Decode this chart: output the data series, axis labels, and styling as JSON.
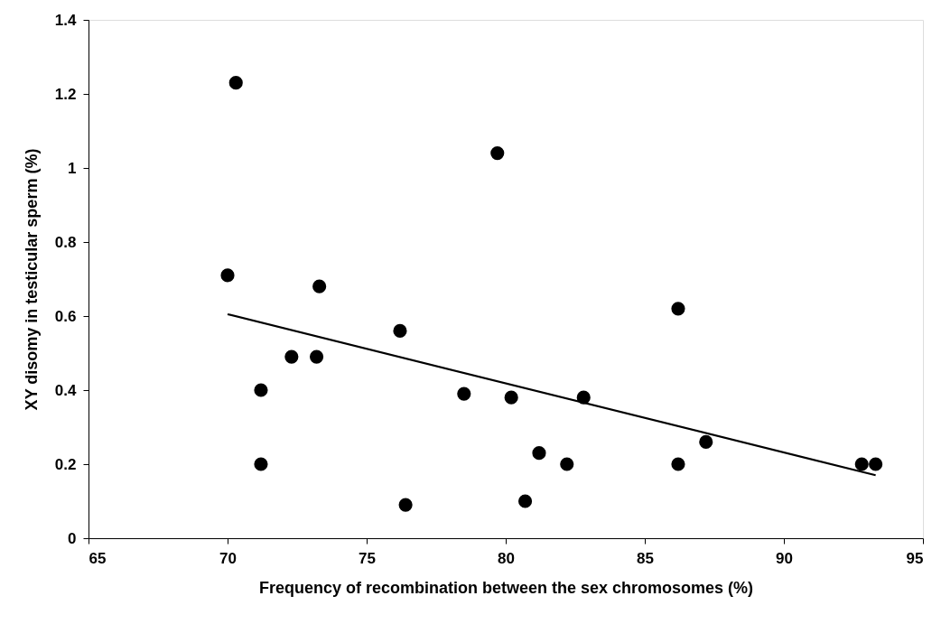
{
  "chart_data": {
    "type": "scatter",
    "xlabel": "Frequency of recombination between the sex chromosomes (%)",
    "ylabel": "XY disomy in testicular sperm (%)",
    "xlim": [
      65,
      95
    ],
    "xticks": [
      65,
      70,
      75,
      80,
      85,
      90,
      95
    ],
    "ylim": [
      0,
      1.4
    ],
    "yticks": [
      0,
      0.2,
      0.4,
      0.6,
      0.8,
      1,
      1.2,
      1.4
    ],
    "grid": false,
    "marker": "circle",
    "series": [
      {
        "color": "#000000",
        "x": [
          70.0,
          70.3,
          71.2,
          71.2,
          72.3,
          73.2,
          73.3,
          76.2,
          76.4,
          78.5,
          79.7,
          80.2,
          80.7,
          81.2,
          82.2,
          82.8,
          86.2,
          86.2,
          87.2,
          92.8,
          93.3
        ],
        "values": [
          0.71,
          1.23,
          0.4,
          0.2,
          0.49,
          0.49,
          0.68,
          0.56,
          0.09,
          0.39,
          1.04,
          0.38,
          0.1,
          0.23,
          0.2,
          0.38,
          0.62,
          0.2,
          0.26,
          0.2,
          0.2
        ]
      },
      {
        "type": "line",
        "color": "#000000",
        "line_style": "solid",
        "marker": "none",
        "x": [
          70.0,
          93.3
        ],
        "values": [
          0.605,
          0.17
        ]
      }
    ]
  }
}
